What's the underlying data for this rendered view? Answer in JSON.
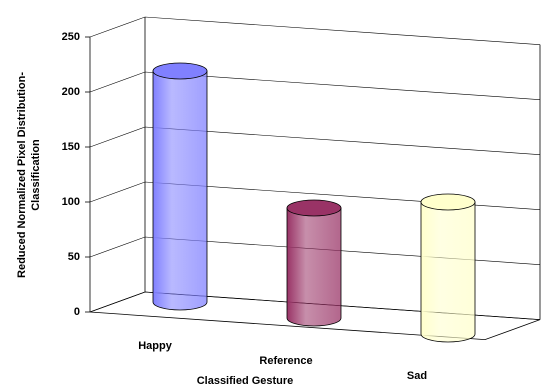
{
  "chart_data": {
    "type": "bar3d",
    "categories": [
      "Happy",
      "Reference",
      "Sad"
    ],
    "values": [
      210,
      100,
      120
    ],
    "colors": [
      "#8080ff",
      "#993366",
      "#ffffcc"
    ],
    "xlabel": "Classified Gesture",
    "ylabel": [
      "Reduced Normalized Pixel Distribution-",
      "Classification"
    ],
    "ylim": [
      0,
      250
    ],
    "yticks": [
      0,
      50,
      100,
      150,
      200,
      250
    ],
    "grid": true
  }
}
